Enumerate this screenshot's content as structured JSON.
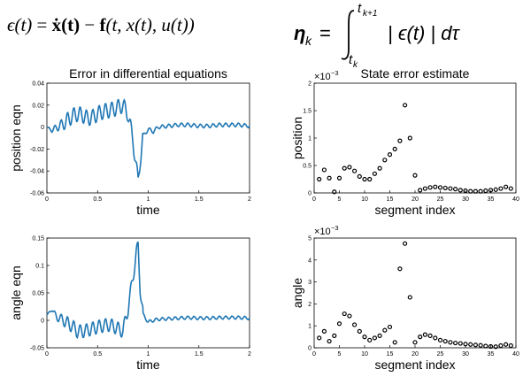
{
  "equations": {
    "residual": {
      "lhs": "ϵ(t)",
      "eq": "=",
      "xdot": "ẋ(t)",
      "minus": "−",
      "f": "f",
      "args": "(t, x(t), u(t))"
    },
    "eta": {
      "lhs": "η",
      "lhs_sub": "k",
      "eq": "=",
      "upper": "t",
      "upper_sub": "k+1",
      "lower": "t",
      "lower_sub": "k",
      "integrand": "| ϵ(t) | dτ"
    }
  },
  "chart_data": [
    {
      "type": "line",
      "title": "Error in differential equations",
      "xlabel": "time",
      "ylabel": "position eqn",
      "xlim": [
        0,
        2
      ],
      "ylim": [
        -0.06,
        0.04
      ],
      "xticks": [
        "0",
        "0.5",
        "1",
        "1.5",
        "2"
      ],
      "yticks": [
        "-0.06",
        "-0.04",
        "-0.02",
        "0",
        "0.02",
        "0.04"
      ],
      "color": "#1f77b4",
      "series": [
        {
          "x": [
            0,
            0.05,
            0.1,
            0.15,
            0.2,
            0.25,
            0.3,
            0.35,
            0.4,
            0.45,
            0.5,
            0.55,
            0.6,
            0.65,
            0.7,
            0.75,
            0.8,
            0.85,
            0.88,
            0.9,
            0.92,
            0.95,
            1.0,
            1.05,
            1.1,
            1.2,
            1.3,
            1.4,
            1.5,
            1.6,
            1.7,
            1.8,
            1.9,
            2.0
          ],
          "y": [
            0,
            -0.003,
            0,
            0.002,
            0.006,
            0.01,
            0.012,
            0.011,
            0.008,
            0.009,
            0.012,
            0.014,
            0.015,
            0.016,
            0.018,
            0.02,
            0.012,
            -0.012,
            -0.035,
            -0.05,
            -0.03,
            -0.008,
            -0.002,
            -0.004,
            0,
            0.001,
            0.002,
            0.002,
            0.001,
            0.001,
            0.002,
            0.002,
            0.002,
            0.001
          ]
        }
      ]
    },
    {
      "type": "scatter",
      "title": "State error estimate",
      "xlabel": "segment index",
      "ylabel": "position",
      "multiplier": "×10",
      "multiplier_exp": "−3",
      "xlim": [
        0,
        40
      ],
      "ylim": [
        0,
        2
      ],
      "xticks": [
        "0",
        "5",
        "10",
        "15",
        "20",
        "25",
        "30",
        "35",
        "40"
      ],
      "yticks": [
        "0",
        "0.5",
        "1",
        "1.5",
        "2"
      ],
      "color": "#000000",
      "x": [
        1,
        2,
        3,
        4,
        5,
        6,
        7,
        8,
        9,
        10,
        11,
        12,
        13,
        14,
        15,
        16,
        17,
        18,
        19,
        20,
        21,
        22,
        23,
        24,
        25,
        26,
        27,
        28,
        29,
        30,
        31,
        32,
        33,
        34,
        35,
        36,
        37,
        38,
        39
      ],
      "y": [
        0.25,
        0.42,
        0.27,
        0.02,
        0.27,
        0.45,
        0.47,
        0.4,
        0.3,
        0.25,
        0.25,
        0.35,
        0.45,
        0.6,
        0.7,
        0.8,
        0.95,
        1.6,
        1.0,
        0.32,
        0.05,
        0.08,
        0.1,
        0.11,
        0.1,
        0.09,
        0.08,
        0.07,
        0.05,
        0.04,
        0.03,
        0.03,
        0.03,
        0.04,
        0.05,
        0.06,
        0.08,
        0.11,
        0.08
      ]
    },
    {
      "type": "line",
      "title": "",
      "xlabel": "time",
      "ylabel": "angle eqn",
      "xlim": [
        0,
        2
      ],
      "ylim": [
        -0.05,
        0.15
      ],
      "xticks": [
        "0",
        "0.5",
        "1",
        "1.5",
        "2"
      ],
      "yticks": [
        "-0.05",
        "0",
        "0.05",
        "0.1",
        "0.15"
      ],
      "color": "#1f77b4",
      "series": [
        {
          "x": [
            0,
            0.05,
            0.1,
            0.15,
            0.2,
            0.25,
            0.3,
            0.35,
            0.4,
            0.45,
            0.5,
            0.55,
            0.6,
            0.65,
            0.7,
            0.75,
            0.8,
            0.85,
            0.88,
            0.9,
            0.92,
            0.95,
            1.0,
            1.05,
            1.1,
            1.2,
            1.3,
            1.4,
            1.5,
            1.6,
            1.7,
            1.8,
            1.9,
            2.0
          ],
          "y": [
            0.01,
            0.02,
            0.005,
            0.002,
            -0.005,
            -0.01,
            -0.02,
            -0.02,
            -0.018,
            -0.015,
            -0.012,
            -0.01,
            -0.008,
            -0.01,
            -0.015,
            -0.02,
            0.02,
            0.08,
            0.12,
            0.135,
            0.06,
            0.01,
            -0.003,
            0,
            0.002,
            0.003,
            0.004,
            0.005,
            0.004,
            0.004,
            0.005,
            0.005,
            0.005,
            0.004
          ]
        }
      ]
    },
    {
      "type": "scatter",
      "title": "",
      "xlabel": "segment index",
      "ylabel": "angle",
      "multiplier": "×10",
      "multiplier_exp": "−3",
      "xlim": [
        0,
        40
      ],
      "ylim": [
        0,
        5
      ],
      "xticks": [
        "0",
        "5",
        "10",
        "15",
        "20",
        "25",
        "30",
        "35",
        "40"
      ],
      "yticks": [
        "0",
        "1",
        "2",
        "3",
        "4",
        "5"
      ],
      "color": "#000000",
      "x": [
        1,
        2,
        3,
        4,
        5,
        6,
        7,
        8,
        9,
        10,
        11,
        12,
        13,
        14,
        15,
        16,
        17,
        18,
        19,
        20,
        21,
        22,
        23,
        24,
        25,
        26,
        27,
        28,
        29,
        30,
        31,
        32,
        33,
        34,
        35,
        36,
        37,
        38,
        39
      ],
      "y": [
        0.45,
        0.75,
        0.3,
        0.55,
        1.1,
        1.55,
        1.45,
        1.05,
        0.75,
        0.5,
        0.35,
        0.45,
        0.55,
        0.8,
        0.95,
        0.25,
        3.6,
        4.75,
        2.3,
        0.25,
        0.5,
        0.6,
        0.55,
        0.45,
        0.35,
        0.3,
        0.25,
        0.22,
        0.2,
        0.17,
        0.15,
        0.13,
        0.11,
        0.08,
        0.06,
        0.05,
        0.1,
        0.15,
        0.1
      ]
    }
  ]
}
